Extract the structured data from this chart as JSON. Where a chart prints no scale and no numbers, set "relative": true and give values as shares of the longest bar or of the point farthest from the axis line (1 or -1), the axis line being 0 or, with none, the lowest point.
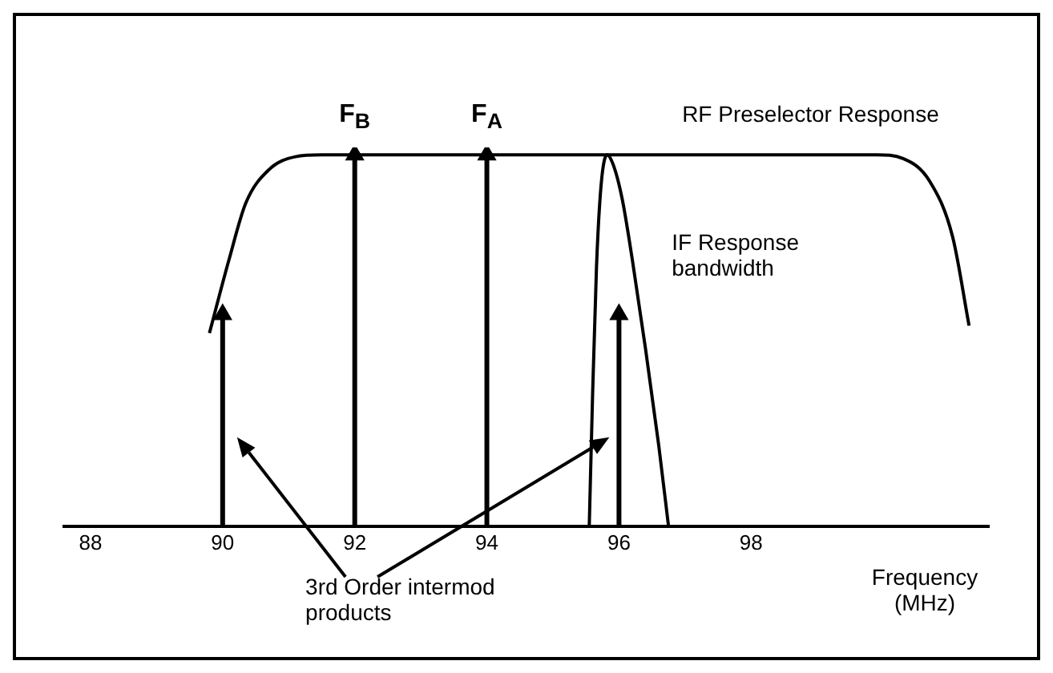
{
  "chart_data": {
    "type": "line",
    "relative": true,
    "xlabel": "Frequency (MHz)",
    "xlim": [
      87.6,
      101.6
    ],
    "xticks": [
      88,
      90,
      92,
      94,
      96,
      98
    ],
    "tick_labels": "x",
    "series": [
      {
        "type": "lollipop",
        "marker": "triangle",
        "color": "#000000",
        "x": [
          90,
          92,
          94,
          96
        ],
        "values": [
          0.57,
          1,
          1,
          0.57
        ]
      },
      {
        "color": "#000000",
        "x": [
          89.8,
          90.1,
          90.35,
          90.7,
          91.1,
          91.5,
          99.9,
          100.3,
          100.7,
          101.05,
          101.3
        ],
        "values": [
          0.52,
          0.72,
          0.87,
          0.96,
          0.995,
          1,
          1,
          0.99,
          0.93,
          0.78,
          0.54
        ]
      },
      {
        "color": "#000000",
        "x": [
          95.55,
          95.6,
          95.66,
          95.73,
          95.82,
          95.92,
          96.05,
          96.2,
          96.4,
          96.6,
          96.75
        ],
        "values": [
          0,
          0.35,
          0.7,
          0.92,
          1,
          0.97,
          0.88,
          0.72,
          0.48,
          0.22,
          0
        ]
      }
    ],
    "annotations": [
      {
        "text": "F$_{B}$",
        "x": 92,
        "y": 1
      },
      {
        "text": "F$_{A}$",
        "x": 94,
        "y": 1
      },
      {
        "text": "RF Preselector Response",
        "x": 98.9,
        "y": 1
      },
      "IF Response bandwidth",
      "3rd Order intermod products"
    ]
  }
}
